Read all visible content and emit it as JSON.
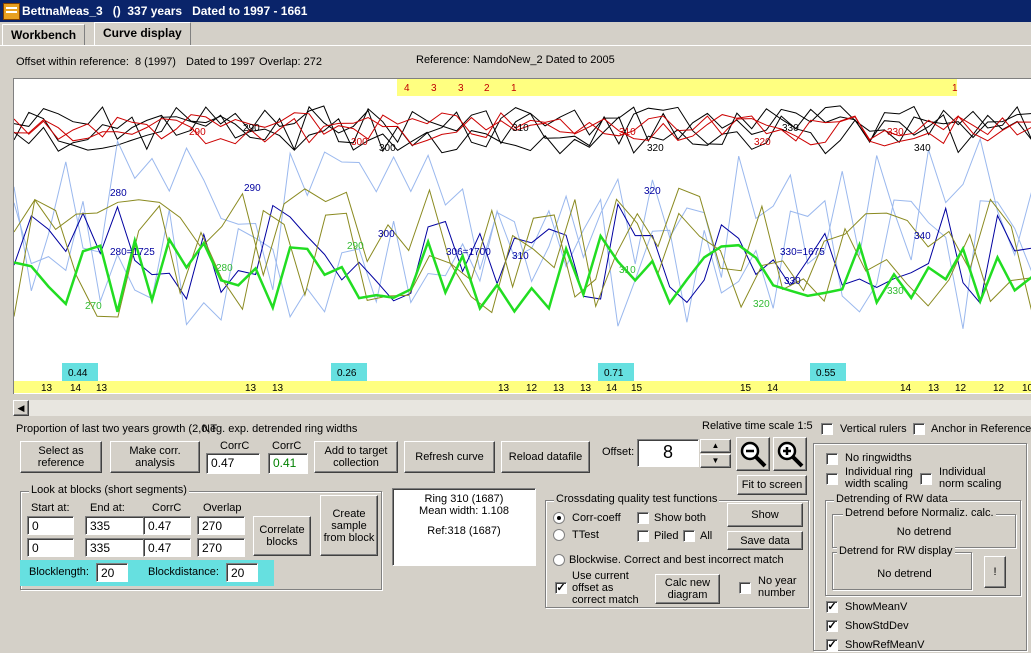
{
  "window": {
    "title": "BettnaMeas_3   ()  337 years   Dated to 1997 - 1661"
  },
  "tabs": [
    {
      "label": "Workbench"
    },
    {
      "label": "Curve display"
    }
  ],
  "info": {
    "offset_within_ref": "Offset within reference:",
    "offset_val": "8  (1997)",
    "dated_to": "Dated to 1997",
    "overlap": "Overlap: 272",
    "reference": "Reference: NamdoNew_2  Dated to 2005"
  },
  "chart": {
    "top_markers": [
      "4",
      "3",
      "3",
      "2",
      "1",
      "1"
    ],
    "decade_labels_black": [
      "290",
      "300",
      "310",
      "320",
      "330",
      "340"
    ],
    "decade_labels_red": [
      "290",
      "300",
      "310",
      "320",
      "330"
    ],
    "blue_labels": [
      "280",
      "290",
      "300",
      "310",
      "320",
      "330",
      "340",
      "280=1725",
      "306=1700",
      "330=1675"
    ],
    "green_labels": [
      "270",
      "280",
      "290",
      "310",
      "320",
      "330"
    ],
    "corr_boxes": [
      "0.44",
      "0.26",
      "0.71",
      "0.55"
    ],
    "bottom_numbers": [
      "13",
      "14",
      "13",
      "13",
      "13",
      "13",
      "12",
      "13",
      "13",
      "14",
      "15",
      "15",
      "14",
      "14",
      "13",
      "12",
      "12",
      "10"
    ]
  },
  "bottom": {
    "proportion_text": "Proportion of last two years growth (2,0,T",
    "neg_exp_text": "Neg. exp. detrended ring widths",
    "relative_time_scale": "Relative time scale 1:5",
    "vertical_rulers": "Vertical rulers",
    "anchor_reference": "Anchor in Reference"
  },
  "buttons": {
    "select_ref": "Select as reference",
    "make_corr": "Make corr. analysis",
    "add_target": "Add to target collection",
    "refresh": "Refresh curve",
    "reload": "Reload datafile",
    "fit_screen": "Fit to screen",
    "correlate_blocks": "Correlate blocks",
    "create_sample": "Create sample from block",
    "show": "Show",
    "save_data": "Save data",
    "calc_new": "Calc new diagram",
    "none_btn": "!"
  },
  "corr": {
    "label1": "CorrC",
    "label2": "CorrC",
    "val1": "0.47",
    "val2": "0.41"
  },
  "offset": {
    "label": "Offset:",
    "value": "8"
  },
  "blocks": {
    "title": "Look at blocks (short segments)",
    "hdr_start": "Start at:",
    "hdr_end": "End at:",
    "hdr_corr": "CorrC",
    "hdr_overlap": "Overlap",
    "rows": [
      {
        "start": "0",
        "end": "335",
        "corr": "0.47",
        "overlap": "270"
      },
      {
        "start": "0",
        "end": "335",
        "corr": "0.47",
        "overlap": "270"
      }
    ],
    "blocklength_label": "Blocklength:",
    "blocklength": "20",
    "blockdistance_label": "Blockdistance:",
    "blockdistance": "20"
  },
  "ringinfo": {
    "line1": "Ring 310  (1687)",
    "line2": "Mean width: 1.108",
    "line3": "Ref:318  (1687)"
  },
  "crossdating": {
    "title": "Crossdating quality test functions",
    "corr_coeff": "Corr-coeff",
    "ttest": "TTest",
    "show_both": "Show both",
    "piled": "Piled",
    "all": "All",
    "blockwise": "Blockwise. Correct and best incorrect match",
    "use_current": "Use current offset as correct match",
    "no_year": "No year number"
  },
  "right": {
    "no_ringwidths": "No ringwidths",
    "individual_ring": "Individual ring width scaling",
    "individual_norm": "Individual norm scaling",
    "detrending_title": "Detrending of RW data",
    "detrend_before": "Detrend before Normaliz. calc.",
    "no_detrend1": "No detrend",
    "detrend_display": "Detrend for RW display",
    "no_detrend2": "No detrend",
    "show_mean": "ShowMeanV",
    "show_std": "ShowStdDev",
    "show_ref_mean": "ShowRefMeanV"
  },
  "colors": {
    "yellow": "#ffff80",
    "cyan": "#66e0e0",
    "green": "#22dd22",
    "navy": "#0000a0",
    "olive": "#8a8a20"
  }
}
